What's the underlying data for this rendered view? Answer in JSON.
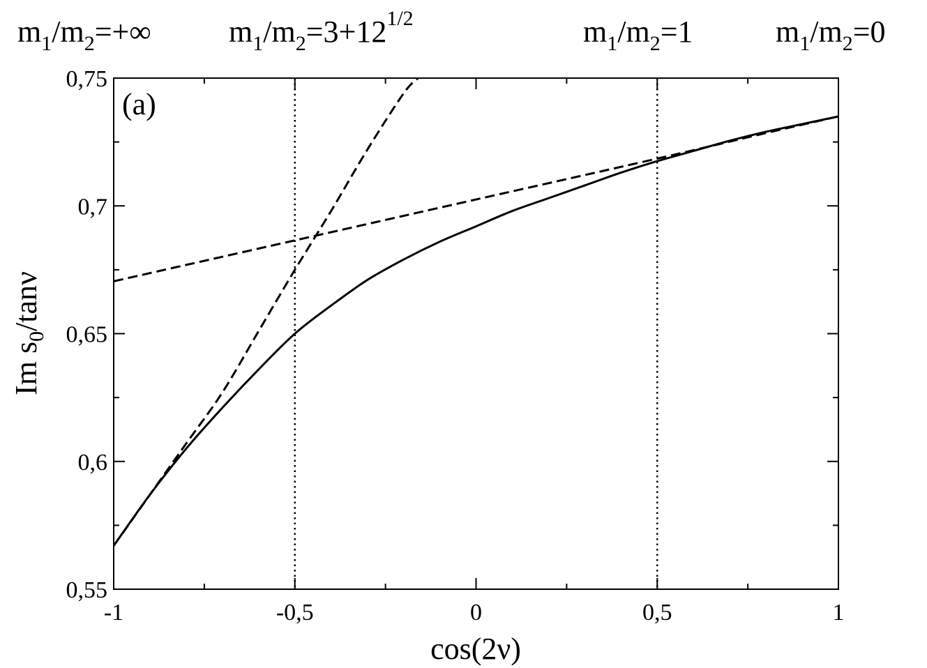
{
  "chart_data": {
    "type": "line",
    "panel_label": "(a)",
    "xlabel": "cos(2ν)",
    "ylabel": {
      "main": "Im s",
      "sub": "0",
      "rest": "/tanν"
    },
    "xlim": [
      -1,
      1
    ],
    "ylim": [
      0.55,
      0.75
    ],
    "x_ticks": [
      {
        "value": -1,
        "label": "-1"
      },
      {
        "value": -0.5,
        "label": "-0,5"
      },
      {
        "value": 0,
        "label": "0"
      },
      {
        "value": 0.5,
        "label": "0,5"
      },
      {
        "value": 1,
        "label": "1"
      }
    ],
    "y_ticks": [
      {
        "value": 0.55,
        "label": "0,55"
      },
      {
        "value": 0.6,
        "label": "0,6"
      },
      {
        "value": 0.65,
        "label": "0,65"
      },
      {
        "value": 0.7,
        "label": "0,7"
      },
      {
        "value": 0.75,
        "label": "0,75"
      }
    ],
    "x_minor_step": 0.25,
    "y_minor_step": 0.025,
    "top_labels": [
      {
        "x": -1,
        "segments": [
          [
            "m",
            ""
          ],
          [
            "1",
            "sub"
          ],
          [
            "/m",
            ""
          ],
          [
            "2",
            "sub"
          ],
          [
            "=+∞",
            ""
          ]
        ]
      },
      {
        "x": -0.5,
        "segments": [
          [
            "m",
            ""
          ],
          [
            "1",
            "sub"
          ],
          [
            "/m",
            ""
          ],
          [
            "2",
            "sub"
          ],
          [
            "=3+12",
            ""
          ],
          [
            "1/2",
            "sup"
          ]
        ]
      },
      {
        "x": 0.5,
        "segments": [
          [
            "m",
            ""
          ],
          [
            "1",
            "sub"
          ],
          [
            "/m",
            ""
          ],
          [
            "2",
            "sub"
          ],
          [
            "=1",
            ""
          ]
        ]
      },
      {
        "x": 1,
        "segments": [
          [
            "m",
            ""
          ],
          [
            "1",
            "sub"
          ],
          [
            "/m",
            ""
          ],
          [
            "2",
            "sub"
          ],
          [
            "=0",
            ""
          ]
        ]
      }
    ],
    "vlines": [
      {
        "x": -0.5,
        "style": "dotted"
      },
      {
        "x": 0.5,
        "style": "dotted"
      }
    ],
    "series": [
      {
        "style": "solid",
        "x": [
          -1,
          -0.9,
          -0.8,
          -0.7,
          -0.6,
          -0.5,
          -0.4,
          -0.3,
          -0.2,
          -0.1,
          0,
          0.1,
          0.2,
          0.3,
          0.4,
          0.5,
          0.6,
          0.7,
          0.8,
          0.9,
          1
        ],
        "y": [
          0.567,
          0.587,
          0.605,
          0.621,
          0.636,
          0.65,
          0.661,
          0.671,
          0.679,
          0.686,
          0.692,
          0.698,
          0.703,
          0.708,
          0.713,
          0.7175,
          0.7215,
          0.7255,
          0.729,
          0.732,
          0.735
        ]
      },
      {
        "style": "dashed",
        "x": [
          -1,
          -0.9,
          -0.8,
          -0.7,
          -0.6,
          -0.5,
          -0.4,
          -0.3,
          -0.2,
          -0.16
        ],
        "y": [
          0.567,
          0.587,
          0.607,
          0.627,
          0.651,
          0.675,
          0.698,
          0.722,
          0.744,
          0.75
        ]
      },
      {
        "style": "dashed",
        "x": [
          -1,
          -0.5,
          0,
          0.5,
          0.8,
          1
        ],
        "y": [
          0.6705,
          0.6865,
          0.7025,
          0.7185,
          0.7285,
          0.735
        ]
      }
    ]
  }
}
